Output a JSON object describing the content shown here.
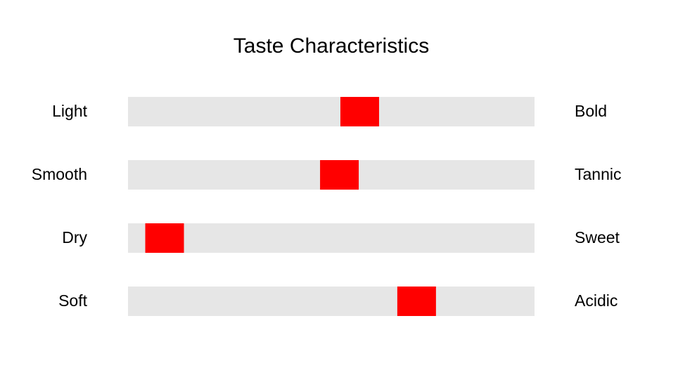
{
  "chart_data": {
    "type": "slider",
    "title": "Taste Characteristics",
    "categories": [
      "Light",
      "Smooth",
      "Dry",
      "Soft"
    ],
    "right_labels": [
      "Bold",
      "Tannic",
      "Sweet",
      "Acidic"
    ],
    "values": [
      57,
      52,
      9,
      71
    ],
    "xlim": [
      0,
      100
    ],
    "color": "#ff0000",
    "track_color": "#e6e6e6"
  }
}
